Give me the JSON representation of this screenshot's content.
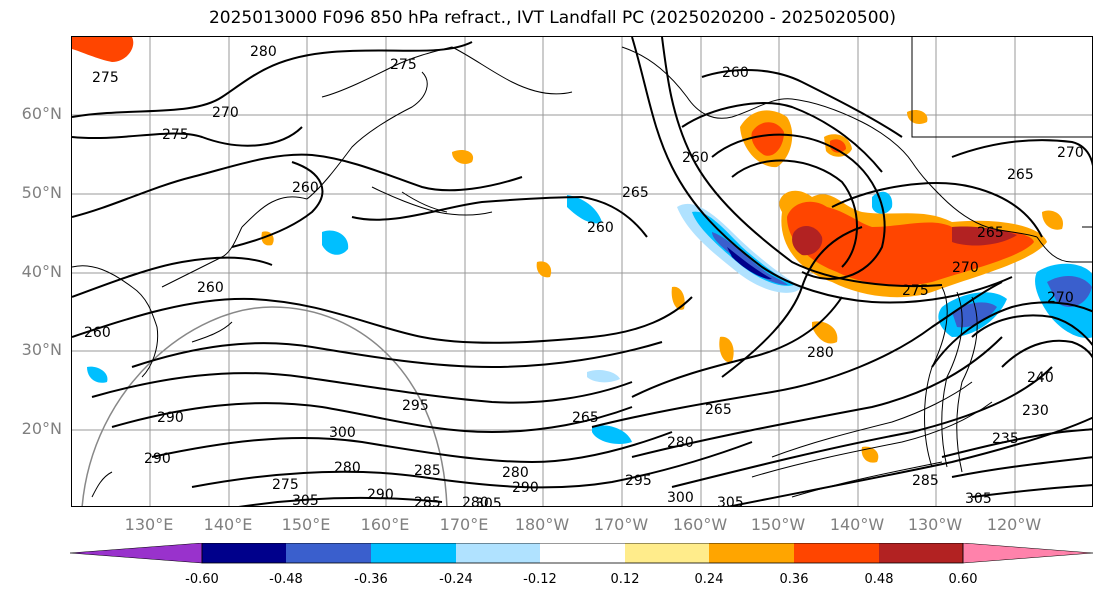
{
  "title": "2025013000 F096 850 hPa refract., IVT Landfall PC (2025020200 - 2025020500)",
  "lat_labels": [
    "60°N",
    "50°N",
    "40°N",
    "30°N",
    "20°N"
  ],
  "lon_labels": [
    "130°E",
    "140°E",
    "150°E",
    "160°E",
    "170°E",
    "180°W",
    "170°W",
    "160°W",
    "150°W",
    "140°W",
    "130°W",
    "120°W"
  ],
  "contour_labels": [
    "280",
    "275",
    "275",
    "270",
    "275",
    "260",
    "260",
    "265",
    "260",
    "260",
    "265",
    "270",
    "265",
    "270",
    "275",
    "280",
    "260",
    "260",
    "290",
    "300",
    "295",
    "265",
    "265",
    "280",
    "285",
    "280",
    "290",
    "280",
    "275",
    "305",
    "290",
    "285",
    "305",
    "295",
    "300",
    "305",
    "270",
    "240",
    "230",
    "235",
    "285",
    "305",
    "280",
    "290"
  ],
  "colorbar": {
    "tick_labels": [
      "-0.60",
      "-0.48",
      "-0.36",
      "-0.24",
      "-0.12",
      "0.12",
      "0.24",
      "0.36",
      "0.48",
      "0.60"
    ],
    "colors": [
      "#9932cc",
      "#00008b",
      "#3a5fcd",
      "#00bfff",
      "#b0e2ff",
      "#ffffff",
      "#ffec8b",
      "#ffa500",
      "#ff4500",
      "#b22222",
      "#ff82ab"
    ]
  }
}
